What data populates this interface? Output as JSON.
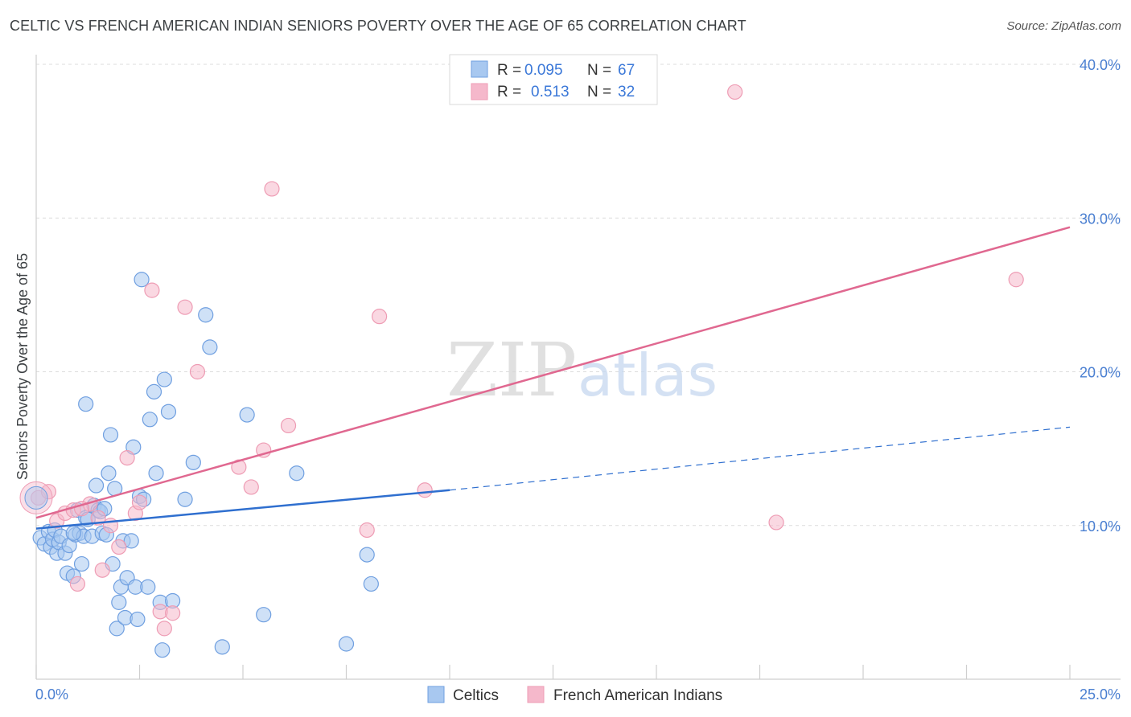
{
  "title": "CELTIC VS FRENCH AMERICAN INDIAN SENIORS POVERTY OVER THE AGE OF 65 CORRELATION CHART",
  "source": "Source: ZipAtlas.com",
  "watermark": {
    "zip": "ZIP",
    "atlas": "atlas"
  },
  "legend": {
    "rows": [
      {
        "r_label": "R =",
        "r_value": "0.095",
        "n_label": "N =",
        "n_value": "67",
        "color": "#a8c8f0"
      },
      {
        "r_label": "R =",
        "r_value": "0.513",
        "n_label": "N =",
        "n_value": "32",
        "color": "#f5b8cb"
      }
    ]
  },
  "bottom_legend": [
    {
      "name": "Celtics",
      "color": "#a8c8f0"
    },
    {
      "name": "French American Indians",
      "color": "#f5b8cb"
    }
  ],
  "chart_data": {
    "type": "scatter",
    "title": "CELTIC VS FRENCH AMERICAN INDIAN SENIORS POVERTY OVER THE AGE OF 65 CORRELATION CHART",
    "xlabel": "",
    "ylabel": "Seniors Poverty Over the Age of 65",
    "xlim": [
      0,
      25
    ],
    "ylim": [
      0,
      40
    ],
    "x_tick_labels": [
      "0.0%",
      "25.0%"
    ],
    "y_ticks": [
      10,
      20,
      30,
      40
    ],
    "y_tick_labels": [
      "10.0%",
      "20.0%",
      "30.0%",
      "40.0%"
    ],
    "grid": true,
    "legend_position": "top-center",
    "series": [
      {
        "name": "Celtics",
        "color": "#6f9fe0",
        "fill": "#a8c8f0",
        "trend": {
          "x": [
            0,
            10
          ],
          "y": [
            9.8,
            12.3
          ],
          "dashed_to": [
            25,
            16.4
          ],
          "color": "#2f6fcf"
        },
        "points": [
          [
            0.1,
            9.2
          ],
          [
            0.2,
            8.8
          ],
          [
            0.3,
            9.6
          ],
          [
            0.35,
            8.6
          ],
          [
            0.4,
            9.1
          ],
          [
            0.45,
            9.7
          ],
          [
            0.5,
            8.2
          ],
          [
            0.55,
            8.9
          ],
          [
            0.6,
            9.3
          ],
          [
            0.7,
            8.2
          ],
          [
            0.75,
            6.9
          ],
          [
            0.8,
            8.7
          ],
          [
            0.9,
            6.7
          ],
          [
            0.95,
            9.4
          ],
          [
            1.0,
            11.0
          ],
          [
            1.05,
            9.5
          ],
          [
            1.1,
            7.5
          ],
          [
            1.15,
            9.3
          ],
          [
            1.2,
            10.5
          ],
          [
            1.25,
            10.4
          ],
          [
            1.35,
            9.3
          ],
          [
            1.4,
            11.3
          ],
          [
            1.45,
            12.6
          ],
          [
            1.5,
            11.0
          ],
          [
            1.55,
            10.9
          ],
          [
            1.6,
            9.5
          ],
          [
            1.65,
            11.1
          ],
          [
            1.7,
            9.4
          ],
          [
            1.75,
            13.4
          ],
          [
            1.8,
            15.9
          ],
          [
            1.85,
            7.5
          ],
          [
            1.9,
            12.4
          ],
          [
            1.95,
            3.3
          ],
          [
            2.0,
            5.0
          ],
          [
            2.05,
            6.0
          ],
          [
            2.1,
            9.0
          ],
          [
            2.15,
            4.0
          ],
          [
            2.2,
            6.6
          ],
          [
            2.3,
            9.0
          ],
          [
            2.35,
            15.1
          ],
          [
            2.4,
            6.0
          ],
          [
            2.45,
            3.9
          ],
          [
            2.5,
            11.9
          ],
          [
            2.55,
            26.0
          ],
          [
            2.6,
            11.7
          ],
          [
            2.7,
            6.0
          ],
          [
            2.75,
            16.9
          ],
          [
            2.85,
            18.7
          ],
          [
            2.9,
            13.4
          ],
          [
            3.0,
            5.0
          ],
          [
            3.05,
            1.9
          ],
          [
            3.1,
            19.5
          ],
          [
            3.2,
            17.4
          ],
          [
            3.3,
            5.1
          ],
          [
            3.6,
            11.7
          ],
          [
            3.8,
            14.1
          ],
          [
            4.1,
            23.7
          ],
          [
            4.2,
            21.6
          ],
          [
            4.5,
            2.1
          ],
          [
            5.1,
            17.2
          ],
          [
            5.5,
            4.2
          ],
          [
            6.3,
            13.4
          ],
          [
            7.5,
            2.3
          ],
          [
            8.0,
            8.1
          ],
          [
            8.1,
            6.2
          ],
          [
            1.2,
            17.9
          ],
          [
            0.9,
            9.5
          ]
        ]
      },
      {
        "name": "French American Indians",
        "color": "#ee9cb4",
        "fill": "#f5b8cb",
        "trend": {
          "x": [
            0,
            25
          ],
          "y": [
            10.5,
            29.4
          ],
          "color": "#e06890"
        },
        "points": [
          [
            0.05,
            11.8
          ],
          [
            0.3,
            12.2
          ],
          [
            0.5,
            10.3
          ],
          [
            0.7,
            10.8
          ],
          [
            0.9,
            11.0
          ],
          [
            1.0,
            6.2
          ],
          [
            1.3,
            11.4
          ],
          [
            1.5,
            10.5
          ],
          [
            1.6,
            7.1
          ],
          [
            1.8,
            10.0
          ],
          [
            2.0,
            8.6
          ],
          [
            2.2,
            14.4
          ],
          [
            2.4,
            10.8
          ],
          [
            2.5,
            11.5
          ],
          [
            2.8,
            25.3
          ],
          [
            3.0,
            4.4
          ],
          [
            3.1,
            3.3
          ],
          [
            3.3,
            4.3
          ],
          [
            3.6,
            24.2
          ],
          [
            3.9,
            20.0
          ],
          [
            4.9,
            13.8
          ],
          [
            5.2,
            12.5
          ],
          [
            5.5,
            14.9
          ],
          [
            5.7,
            31.9
          ],
          [
            6.1,
            16.5
          ],
          [
            8.0,
            9.7
          ],
          [
            8.3,
            23.6
          ],
          [
            9.4,
            12.3
          ],
          [
            16.9,
            38.2
          ],
          [
            17.9,
            10.2
          ],
          [
            23.7,
            26.0
          ],
          [
            1.1,
            11.1
          ]
        ]
      }
    ]
  }
}
